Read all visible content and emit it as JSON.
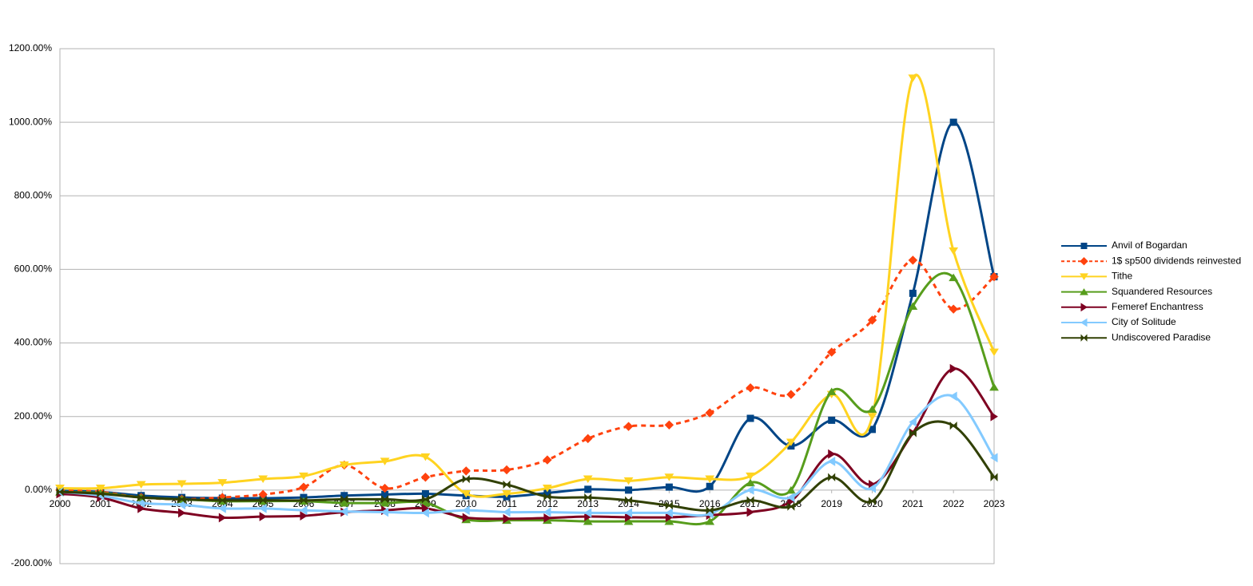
{
  "chart_data": {
    "type": "line",
    "smooth": true,
    "grid": true,
    "legend": "right",
    "x": [
      2000,
      2001,
      2002,
      2003,
      2004,
      2005,
      2006,
      2007,
      2008,
      2009,
      2010,
      2011,
      2012,
      2013,
      2014,
      2015,
      2016,
      2017,
      2018,
      2019,
      2020,
      2021,
      2022,
      2023
    ],
    "xlim": [
      2000,
      2023
    ],
    "xticks": [
      2000,
      2001,
      2002,
      2003,
      2004,
      2005,
      2006,
      2007,
      2008,
      2009,
      2010,
      2011,
      2012,
      2013,
      2014,
      2015,
      2016,
      2017,
      2018,
      2019,
      2020,
      2021,
      2022,
      2023
    ],
    "ylim": [
      -200,
      1200
    ],
    "yticks": [
      {
        "value": -200,
        "label": "-200.00%"
      },
      {
        "value": 0,
        "label": "0.00%"
      },
      {
        "value": 200,
        "label": "200.00%"
      },
      {
        "value": 400,
        "label": "400.00%"
      },
      {
        "value": 600,
        "label": "600.00%"
      },
      {
        "value": 800,
        "label": "800.00%"
      },
      {
        "value": 1000,
        "label": "1000.00%"
      },
      {
        "value": 1200,
        "label": "1200.00%"
      }
    ],
    "series": [
      {
        "name": "Anvil of Bogardan",
        "color": "#004586",
        "marker": "square",
        "values": [
          -2,
          -5,
          -15,
          -20,
          -22,
          -22,
          -20,
          -15,
          -12,
          -10,
          -15,
          -18,
          -8,
          2,
          0,
          8,
          10,
          195,
          120,
          190,
          165,
          535,
          1000,
          580
        ]
      },
      {
        "name": "1$ sp500 dividends reinvested",
        "color": "#ff420e",
        "marker": "diamond",
        "dashed": true,
        "values": [
          0,
          -5,
          -20,
          -25,
          -20,
          -12,
          8,
          68,
          5,
          35,
          52,
          55,
          82,
          140,
          173,
          177,
          210,
          278,
          260,
          375,
          462,
          625,
          492,
          580
        ]
      },
      {
        "name": "Tithe",
        "color": "#ffd320",
        "marker": "triangle-down",
        "values": [
          5,
          5,
          15,
          17,
          20,
          30,
          38,
          68,
          78,
          90,
          -10,
          -10,
          5,
          30,
          25,
          35,
          30,
          38,
          130,
          260,
          200,
          1120,
          650,
          375
        ]
      },
      {
        "name": "Squandered Resources",
        "color": "#579d1c",
        "marker": "triangle-up",
        "values": [
          -5,
          -8,
          -20,
          -25,
          -30,
          -30,
          -30,
          -35,
          -35,
          -35,
          -80,
          -82,
          -82,
          -85,
          -85,
          -85,
          -85,
          20,
          0,
          268,
          220,
          500,
          578,
          280
        ]
      },
      {
        "name": "Femeref Enchantress",
        "color": "#7e0021",
        "marker": "triangle-right",
        "values": [
          -10,
          -20,
          -50,
          -62,
          -75,
          -72,
          -70,
          -60,
          -55,
          -50,
          -75,
          -78,
          -76,
          -72,
          -74,
          -74,
          -68,
          -60,
          -30,
          98,
          15,
          155,
          330,
          200
        ]
      },
      {
        "name": "City of Solitude",
        "color": "#83caff",
        "marker": "triangle-left",
        "values": [
          -5,
          -15,
          -35,
          -40,
          -50,
          -50,
          -55,
          -58,
          -60,
          -62,
          -55,
          -60,
          -60,
          -62,
          -62,
          -62,
          -65,
          0,
          -20,
          78,
          5,
          185,
          255,
          88
        ]
      },
      {
        "name": "Undiscovered Paradise",
        "color": "#314004",
        "marker": "bowtie",
        "values": [
          -5,
          -10,
          -20,
          -25,
          -28,
          -28,
          -28,
          -25,
          -25,
          -25,
          30,
          15,
          -18,
          -20,
          -28,
          -42,
          -55,
          -28,
          -45,
          35,
          -30,
          155,
          175,
          35
        ]
      }
    ]
  }
}
